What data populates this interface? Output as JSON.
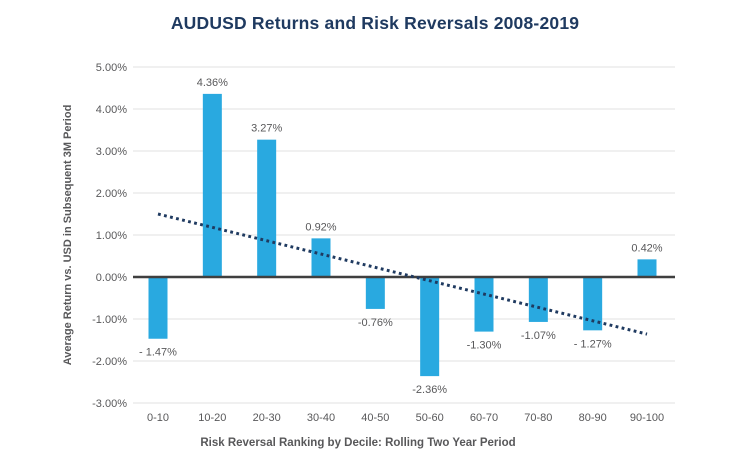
{
  "chart_data": {
    "type": "bar",
    "title": "AUDUSD Returns and Risk Reversals 2008-2019",
    "xlabel": "Risk Reversal Ranking by Decile: Rolling Two Year Period",
    "ylabel": "Average Return vs. USD in Subsequent 3M Period",
    "categories": [
      "0-10",
      "10-20",
      "20-30",
      "30-40",
      "40-50",
      "50-60",
      "60-70",
      "70-80",
      "80-90",
      "90-100"
    ],
    "values": [
      -1.47,
      4.36,
      3.27,
      0.92,
      -0.76,
      -2.36,
      -1.3,
      -1.07,
      -1.27,
      0.42
    ],
    "value_labels": [
      "- 1.47%",
      "4.36%",
      "3.27%",
      "0.92%",
      "-0.76%",
      "-2.36%",
      "-1.30%",
      "-1.07%",
      "- 1.27%",
      "0.42%"
    ],
    "ylim": [
      -3,
      5
    ],
    "ytick_step": 1,
    "ytick_labels": [
      "5.00%",
      "4.00%",
      "3.00%",
      "2.00%",
      "1.00%",
      "0.00%",
      "-1.00%",
      "-2.00%",
      "-3.00%"
    ],
    "grid": true,
    "legend": "none",
    "trendline": {
      "style": "dotted",
      "start_value": 1.5,
      "end_value": -1.36
    },
    "colors": {
      "bar": "#29A9E0",
      "trendline": "#1F3A60",
      "title": "#1F3A60",
      "axis_text": "#58585A",
      "gridline": "#E8E8E8",
      "zero_line": "#3F3F3F",
      "background": "#FFFFFF"
    }
  }
}
